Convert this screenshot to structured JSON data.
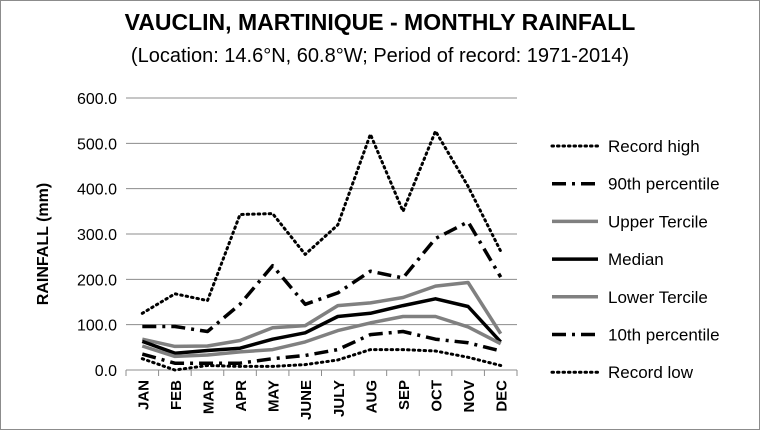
{
  "chart_data": {
    "type": "line",
    "title": "VAUCLIN, MARTINIQUE - MONTHLY RAINFALL",
    "subtitle": "(Location: 14.6°N, 60.8°W; Period of record: 1971-2014)",
    "xlabel": "",
    "ylabel": "RAINFALL (mm)",
    "ylim": [
      0,
      600
    ],
    "yticks": [
      "0.0",
      "100.0",
      "200.0",
      "300.0",
      "400.0",
      "500.0",
      "600.0"
    ],
    "grid": "horizontal",
    "legend": "right",
    "categories": [
      "JAN",
      "FEB",
      "MAR",
      "APR",
      "MAY",
      "JUNE",
      "JULY",
      "AUG",
      "SEP",
      "OCT",
      "NOV",
      "DEC"
    ],
    "series": [
      {
        "name": "Record high",
        "style": "dotted",
        "color": "#000000",
        "values": [
          125,
          168,
          153,
          343,
          345,
          255,
          320,
          520,
          350,
          527,
          405,
          262
        ]
      },
      {
        "name": "90th percentile",
        "style": "dashdot",
        "color": "#000000",
        "values": [
          96,
          96,
          85,
          145,
          230,
          145,
          170,
          218,
          203,
          290,
          327,
          205
        ]
      },
      {
        "name": "Upper Tercile",
        "style": "solid",
        "color": "#808080",
        "values": [
          68,
          52,
          53,
          65,
          93,
          98,
          142,
          148,
          160,
          185,
          193,
          80
        ]
      },
      {
        "name": "Median",
        "style": "solid",
        "color": "#000000",
        "values": [
          63,
          37,
          43,
          48,
          68,
          82,
          118,
          125,
          142,
          157,
          140,
          62
        ]
      },
      {
        "name": "Lower Tercile",
        "style": "solid",
        "color": "#808080",
        "values": [
          53,
          30,
          33,
          40,
          45,
          62,
          87,
          104,
          118,
          118,
          95,
          58
        ]
      },
      {
        "name": "10th percentile",
        "style": "dashdot",
        "color": "#000000",
        "values": [
          35,
          15,
          15,
          15,
          25,
          32,
          45,
          78,
          85,
          68,
          60,
          42
        ]
      },
      {
        "name": "Record low",
        "style": "dotted",
        "color": "#000000",
        "values": [
          25,
          0,
          10,
          8,
          8,
          12,
          22,
          45,
          45,
          42,
          28,
          10
        ]
      }
    ]
  }
}
